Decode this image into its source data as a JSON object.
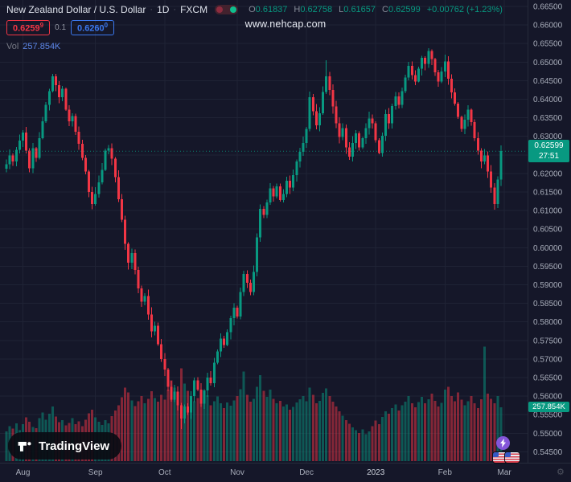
{
  "colors": {
    "background": "#151729",
    "grid": "#1f2335",
    "up": "#089981",
    "down": "#f23645",
    "axis_text": "#a8adba",
    "axis_text_bright": "#ced3dd",
    "title_text": "#dde1ea",
    "muted_text": "#787b86",
    "buy_blue": "#3b79f0",
    "volume_value": "#5d87e8",
    "boost_purple": "#8456d9"
  },
  "header": {
    "symbol_title": "New Zealand Dollar / U.S. Dollar",
    "sep": "·",
    "interval": "1D",
    "exchange": "FXCM",
    "ohlc": {
      "ol": "O",
      "o": "0.61837",
      "hl": "H",
      "h": "0.62758",
      "ll": "L",
      "l": "0.61657",
      "cl": "C",
      "c": "0.62599",
      "chg": "+0.00762 (+1.23%)"
    },
    "sell_price": "0.6259",
    "sell_sup": "9",
    "spread": "0.1",
    "buy_price": "0.6260",
    "buy_sup": "0",
    "vol_label": "Vol",
    "vol_value": "257.854K"
  },
  "watermark": {
    "text": "www.nehcap.com"
  },
  "logo": {
    "text": "TradingView"
  },
  "price_axis": {
    "ticks": [
      "0.66500",
      "0.66000",
      "0.65500",
      "0.65000",
      "0.64500",
      "0.64000",
      "0.63500",
      "0.63000",
      "0.62500",
      "0.62000",
      "0.61500",
      "0.61000",
      "0.60500",
      "0.60000",
      "0.59500",
      "0.59000",
      "0.58500",
      "0.58000",
      "0.57500",
      "0.57000",
      "0.56500",
      "0.56000",
      "0.55500",
      "0.55000",
      "0.54500"
    ],
    "last_price_label": "0.62599",
    "countdown": "27:51",
    "volume_label": "257.854K"
  },
  "chart_data": {
    "type": "candlestick+volume",
    "symbol": "NZDUSD",
    "interval": "1D",
    "title": "New Zealand Dollar / U.S. Dollar · 1D · FXCM",
    "price_range": [
      0.545,
      0.665
    ],
    "grid": true,
    "time_ticks": [
      {
        "label": "Aug",
        "i": 5
      },
      {
        "label": "Sep",
        "i": 27
      },
      {
        "label": "Oct",
        "i": 48
      },
      {
        "label": "Nov",
        "i": 70
      },
      {
        "label": "Dec",
        "i": 91
      },
      {
        "label": "2023",
        "i": 112,
        "year": true
      },
      {
        "label": "Feb",
        "i": 133
      },
      {
        "label": "Mar",
        "i": 151
      }
    ],
    "closes": [
      0.6225,
      0.6248,
      0.6232,
      0.6264,
      0.6288,
      0.631,
      0.6262,
      0.6214,
      0.6268,
      0.6242,
      0.6295,
      0.634,
      0.6385,
      0.6422,
      0.6462,
      0.6438,
      0.6405,
      0.6428,
      0.6372,
      0.634,
      0.6355,
      0.6312,
      0.628,
      0.6242,
      0.6205,
      0.615,
      0.6118,
      0.6145,
      0.6176,
      0.621,
      0.6262,
      0.6268,
      0.624,
      0.619,
      0.613,
      0.6075,
      0.601,
      0.596,
      0.5985,
      0.594,
      0.589,
      0.5855,
      0.587,
      0.582,
      0.5775,
      0.579,
      0.574,
      0.57,
      0.5672,
      0.5625,
      0.559,
      0.5612,
      0.5575,
      0.554,
      0.5572,
      0.5556,
      0.56,
      0.5642,
      0.5618,
      0.558,
      0.5615,
      0.565,
      0.5635,
      0.569,
      0.572,
      0.5755,
      0.5738,
      0.5772,
      0.581,
      0.5838,
      0.5815,
      0.588,
      0.5929,
      0.5905,
      0.588,
      0.5935,
      0.6028,
      0.6105,
      0.6088,
      0.6122,
      0.616,
      0.6138,
      0.6165,
      0.6128,
      0.6145,
      0.618,
      0.6162,
      0.6195,
      0.6232,
      0.6258,
      0.6282,
      0.632,
      0.6405,
      0.6368,
      0.633,
      0.6362,
      0.642,
      0.6462,
      0.6425,
      0.638,
      0.6335,
      0.6298,
      0.6322,
      0.627,
      0.6245,
      0.6282,
      0.6308,
      0.627,
      0.6295,
      0.6322,
      0.6348,
      0.6335,
      0.629,
      0.6255,
      0.6302,
      0.636,
      0.6335,
      0.6382,
      0.6408,
      0.6385,
      0.6422,
      0.6458,
      0.649,
      0.6465,
      0.6448,
      0.6482,
      0.6512,
      0.6495,
      0.653,
      0.6508,
      0.6472,
      0.6448,
      0.6475,
      0.6502,
      0.6455,
      0.6418,
      0.6388,
      0.6352,
      0.632,
      0.6345,
      0.6372,
      0.6338,
      0.6295,
      0.6262,
      0.6232,
      0.6248,
      0.6205,
      0.6162,
      0.6118,
      0.6184,
      0.62599
    ],
    "volumes_k": [
      142,
      168,
      155,
      181,
      149,
      176,
      210,
      188,
      164,
      157,
      205,
      232,
      198,
      226,
      261,
      214,
      187,
      196,
      171,
      182,
      205,
      176,
      191,
      168,
      199,
      228,
      246,
      210,
      189,
      174,
      196,
      181,
      215,
      242,
      268,
      305,
      352,
      328,
      291,
      263,
      287,
      312,
      276,
      298,
      334,
      302,
      285,
      318,
      295,
      342,
      386,
      352,
      317,
      445,
      371,
      336,
      312,
      287,
      301,
      276,
      292,
      315,
      268,
      287,
      309,
      276,
      254,
      281,
      265,
      291,
      312,
      345,
      428,
      317,
      284,
      298,
      356,
      412,
      336,
      308,
      342,
      298,
      276,
      288,
      262,
      271,
      246,
      259,
      281,
      296,
      312,
      287,
      352,
      318,
      276,
      288,
      326,
      348,
      312,
      284,
      262,
      238,
      217,
      196,
      178,
      162,
      148,
      135,
      152,
      128,
      142,
      168,
      195,
      176,
      212,
      238,
      226,
      254,
      271,
      242,
      268,
      285,
      312,
      276,
      258,
      282,
      308,
      276,
      296,
      324,
      288,
      262,
      278,
      342,
      356,
      312,
      286,
      328,
      294,
      268,
      286,
      312,
      276,
      254,
      296,
      548,
      324,
      298,
      276,
      312,
      257.854
    ],
    "wick_extremes": {
      "high": {
        "14": 0.6468,
        "97": 0.6505,
        "128": 0.6537
      },
      "low": {
        "53": 0.5512
      }
    },
    "current_bar": {
      "open": 0.61837,
      "high": 0.62758,
      "low": 0.61657,
      "close": 0.62599,
      "volume_k": 257.854
    }
  }
}
